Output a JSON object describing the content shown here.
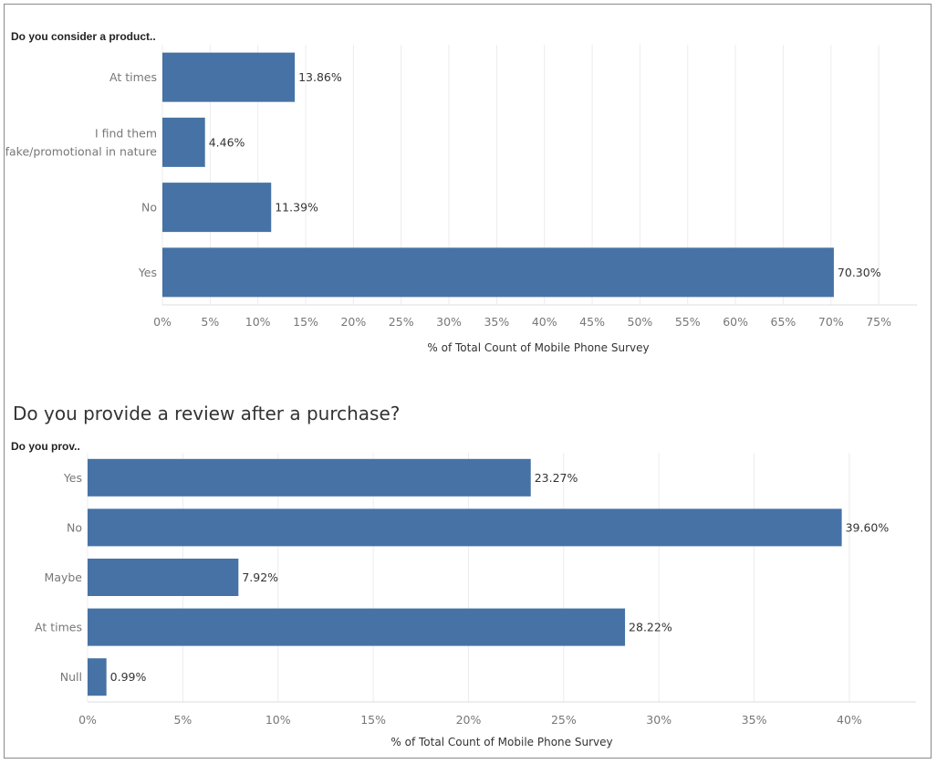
{
  "chart_data": [
    {
      "type": "bar",
      "orientation": "horizontal",
      "row_header": "Do you consider a product..",
      "categories": [
        "At times",
        "I find them fake/promotional in nature",
        "No",
        "Yes"
      ],
      "category_lines": [
        [
          "At times"
        ],
        [
          "I find them",
          "fake/promotional in nature"
        ],
        [
          "No"
        ],
        [
          "Yes"
        ]
      ],
      "values": [
        13.86,
        4.46,
        11.39,
        70.3
      ],
      "value_labels": [
        "13.86%",
        "4.46%",
        "11.39%",
        "70.30%"
      ],
      "xlabel": "% of Total Count of Mobile Phone Survey",
      "xlim": [
        0,
        79
      ],
      "xticks": [
        0,
        5,
        10,
        15,
        20,
        25,
        30,
        35,
        40,
        45,
        50,
        55,
        60,
        65,
        70,
        75
      ],
      "xtick_labels": [
        "0%",
        "5%",
        "10%",
        "15%",
        "20%",
        "25%",
        "30%",
        "35%",
        "40%",
        "45%",
        "50%",
        "55%",
        "60%",
        "65%",
        "70%",
        "75%"
      ],
      "grid": true
    },
    {
      "type": "bar",
      "orientation": "horizontal",
      "title": "Do you provide a review after a purchase?",
      "row_header": "Do you prov..",
      "categories": [
        "Yes",
        "No",
        "Maybe",
        "At times",
        "Null"
      ],
      "category_lines": [
        [
          "Yes"
        ],
        [
          "No"
        ],
        [
          "Maybe"
        ],
        [
          "At times"
        ],
        [
          "Null"
        ]
      ],
      "values": [
        23.27,
        39.6,
        7.92,
        28.22,
        0.99
      ],
      "value_labels": [
        "23.27%",
        "39.60%",
        "7.92%",
        "28.22%",
        "0.99%"
      ],
      "xlabel": "% of Total Count of Mobile Phone Survey",
      "xlim": [
        0,
        43.5
      ],
      "xticks": [
        0,
        5,
        10,
        15,
        20,
        25,
        30,
        35,
        40
      ],
      "xtick_labels": [
        "0%",
        "5%",
        "10%",
        "15%",
        "20%",
        "25%",
        "30%",
        "35%",
        "40%"
      ],
      "grid": true
    }
  ],
  "colors": {
    "bar": "#4672a5",
    "grid": "#ececec",
    "text": "#666666",
    "label": "#333333"
  }
}
